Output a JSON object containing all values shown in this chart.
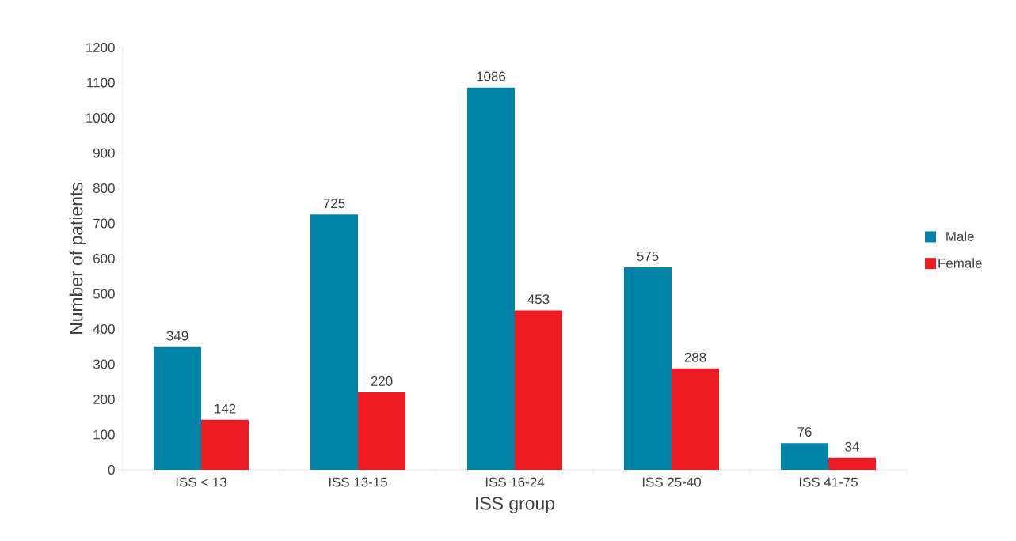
{
  "chart_data": {
    "type": "bar",
    "xlabel": "ISS group",
    "ylabel": "Number of patients",
    "categories": [
      "ISS < 13",
      "ISS 13-15",
      "ISS 16-24",
      "ISS 25-40",
      "ISS 41-75"
    ],
    "series": [
      {
        "name": "Male",
        "color": "#0083a9",
        "values": [
          349,
          725,
          1086,
          575,
          76
        ]
      },
      {
        "name": "Female",
        "color": "#ed1c24",
        "values": [
          142,
          220,
          453,
          288,
          34
        ]
      }
    ],
    "ylim": [
      0,
      1200
    ],
    "yticks": [
      0,
      100,
      200,
      300,
      400,
      500,
      600,
      700,
      800,
      900,
      1000,
      1100,
      1200
    ],
    "data_labels": true,
    "legend": "right",
    "grid": false
  }
}
